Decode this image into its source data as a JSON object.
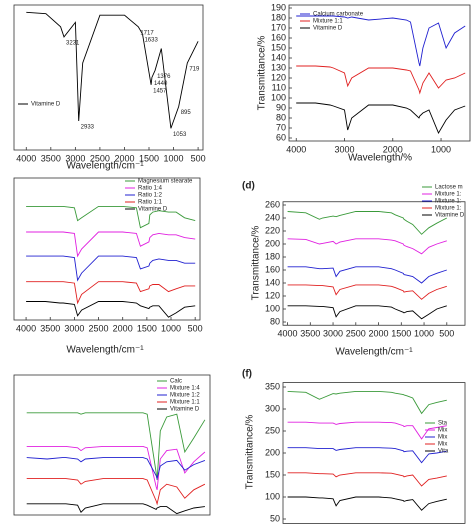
{
  "chart_data": [
    {
      "type": "line",
      "x_label": "Wavelength/cm⁻¹",
      "x": [
        4000,
        3600,
        3300,
        3231,
        3000,
        2933,
        2850,
        2500,
        2000,
        1717,
        1633,
        1457,
        1440,
        1376,
        1250,
        1053,
        895,
        719,
        500
      ],
      "xlim": [
        4250,
        400
      ],
      "ylim": [
        0,
        100
      ],
      "xticks": [
        4000,
        3500,
        3000,
        2500,
        2000,
        1500,
        1000,
        500
      ],
      "legend": "lower left",
      "series": [
        {
          "name": "Vitamine D",
          "color": "#000000",
          "values": [
            95,
            94,
            85,
            78,
            88,
            20,
            60,
            93,
            93,
            85,
            80,
            45,
            50,
            55,
            70,
            15,
            30,
            60,
            75
          ]
        }
      ],
      "annotations": [
        {
          "text": "3231",
          "x": 3231
        },
        {
          "text": "2933",
          "x": 2933
        },
        {
          "text": "1717",
          "x": 1717
        },
        {
          "text": "1633",
          "x": 1633
        },
        {
          "text": "1457",
          "x": 1457
        },
        {
          "text": "1440",
          "x": 1440
        },
        {
          "text": "1376",
          "x": 1376
        },
        {
          "text": "1053",
          "x": 1053
        },
        {
          "text": "895",
          "x": 895
        },
        {
          "text": "719",
          "x": 719
        }
      ]
    },
    {
      "type": "line",
      "x_label": "Wavelength/%",
      "y_label": "Transmittance/%",
      "x": [
        4000,
        3600,
        3300,
        3231,
        3000,
        2933,
        2850,
        2500,
        2000,
        1717,
        1633,
        1457,
        1440,
        1376,
        1250,
        1053,
        895,
        719,
        500
      ],
      "xlim": [
        4150,
        400
      ],
      "ylim": [
        57,
        193
      ],
      "xticks": [
        4000,
        3000,
        2000,
        1000
      ],
      "yticks": [
        60,
        70,
        80,
        90,
        100,
        110,
        120,
        130,
        140,
        150,
        160,
        170,
        180,
        190
      ],
      "legend": "upper left",
      "series": [
        {
          "name": "Calcium carbonate",
          "color": "#2020d0",
          "values": [
            182,
            182,
            182,
            182,
            181,
            180,
            181,
            178,
            180,
            178,
            176,
            135,
            132,
            150,
            170,
            175,
            150,
            165,
            172
          ]
        },
        {
          "name": "Mixture 1:1",
          "color": "#e02020",
          "values": [
            132,
            132,
            131,
            130,
            125,
            112,
            120,
            130,
            130,
            128,
            127,
            108,
            105,
            115,
            125,
            110,
            118,
            120,
            125
          ]
        },
        {
          "name": "Vitamine D",
          "color": "#000000",
          "values": [
            95,
            95,
            93,
            92,
            88,
            68,
            80,
            93,
            93,
            90,
            88,
            80,
            82,
            85,
            88,
            65,
            78,
            88,
            92
          ]
        }
      ]
    },
    {
      "type": "line",
      "x_label": "Wavelength/cm⁻¹",
      "x": [
        4000,
        3600,
        3300,
        3231,
        3000,
        2933,
        2850,
        2500,
        2000,
        1717,
        1633,
        1457,
        1440,
        1376,
        1250,
        1053,
        895,
        719,
        500
      ],
      "xlim": [
        4250,
        400
      ],
      "ylim": [
        0,
        100
      ],
      "xticks": [
        4000,
        3500,
        3000,
        2500,
        2000,
        1500,
        1000,
        500
      ],
      "legend": "upper right",
      "series": [
        {
          "name": "Magnesium stearate",
          "color": "#3a9a3a",
          "values": [
            80,
            80,
            80,
            80,
            79,
            70,
            72,
            80,
            80,
            79,
            65,
            68,
            74,
            76,
            77,
            76,
            76,
            72,
            70
          ]
        },
        {
          "name": "Ratio 1:4",
          "color": "#e020e0",
          "values": [
            62,
            62,
            62,
            62,
            61,
            45,
            50,
            62,
            62,
            61,
            52,
            55,
            58,
            60,
            61,
            60,
            60,
            58,
            57
          ]
        },
        {
          "name": "Ratio 1:2",
          "color": "#2020d0",
          "values": [
            45,
            45,
            45,
            45,
            44,
            28,
            33,
            45,
            45,
            44,
            36,
            38,
            40,
            42,
            43,
            42,
            42,
            40,
            40
          ]
        },
        {
          "name": "Ratio 1:1",
          "color": "#e02020",
          "values": [
            27,
            27,
            27,
            27,
            26,
            12,
            18,
            27,
            27,
            26,
            20,
            22,
            24,
            25,
            25,
            20,
            22,
            24,
            24
          ]
        },
        {
          "name": "Vitamine D",
          "color": "#000000",
          "values": [
            13,
            13,
            12,
            12,
            11,
            3,
            7,
            13,
            13,
            12,
            10,
            8,
            9,
            10,
            10,
            2,
            5,
            9,
            10
          ]
        }
      ]
    },
    {
      "type": "line",
      "title": "(d)",
      "x_label": "Wavelength/cm⁻¹",
      "y_label": "Transmittance/%",
      "x": [
        4000,
        3600,
        3300,
        3231,
        3000,
        2933,
        2850,
        2500,
        2000,
        1717,
        1633,
        1457,
        1440,
        1376,
        1250,
        1053,
        895,
        719,
        500
      ],
      "xlim": [
        4100,
        100
      ],
      "ylim": [
        75,
        265
      ],
      "xticks": [
        4000,
        3500,
        3000,
        2500,
        2000,
        1500,
        1000,
        500
      ],
      "yticks": [
        80,
        100,
        120,
        140,
        160,
        180,
        200,
        220,
        240,
        260
      ],
      "legend": "upper right",
      "series": [
        {
          "name": "Lactose m",
          "color": "#3a9a3a",
          "values": [
            250,
            248,
            238,
            240,
            243,
            242,
            244,
            250,
            250,
            248,
            245,
            240,
            238,
            235,
            230,
            215,
            225,
            232,
            240
          ]
        },
        {
          "name": "Mixture 1:",
          "color": "#e020e0",
          "values": [
            208,
            207,
            200,
            201,
            204,
            200,
            203,
            208,
            208,
            206,
            205,
            200,
            198,
            196,
            193,
            185,
            195,
            200,
            205
          ]
        },
        {
          "name": "Mixture 1:",
          "color": "#2020d0",
          "values": [
            165,
            165,
            162,
            162,
            163,
            150,
            158,
            165,
            165,
            162,
            160,
            155,
            153,
            152,
            150,
            140,
            150,
            155,
            160
          ]
        },
        {
          "name": "Mixture 1:",
          "color": "#e02020",
          "values": [
            137,
            137,
            136,
            136,
            134,
            122,
            130,
            137,
            137,
            135,
            133,
            128,
            126,
            127,
            128,
            115,
            124,
            130,
            135
          ]
        },
        {
          "name": "Vitamine D",
          "color": "#000000",
          "values": [
            105,
            105,
            104,
            104,
            102,
            88,
            96,
            105,
            105,
            103,
            100,
            95,
            94,
            96,
            97,
            85,
            92,
            100,
            105
          ]
        }
      ]
    },
    {
      "type": "line",
      "x": [
        4000,
        3600,
        3300,
        3231,
        3000,
        2933,
        2850,
        2500,
        2000,
        1717,
        1633,
        1457,
        1440,
        1376,
        1250,
        1053,
        895,
        719,
        500
      ],
      "xlim": [
        4250,
        400
      ],
      "ylim": [
        0,
        100
      ],
      "legend": "upper right",
      "series": [
        {
          "name": "Calc",
          "color": "#3a9a3a",
          "values": [
            73,
            73,
            73,
            73,
            73,
            72,
            73,
            73,
            73,
            73,
            72,
            30,
            25,
            60,
            70,
            72,
            45,
            55,
            68
          ]
        },
        {
          "name": "Mixture 1:4",
          "color": "#e020e0",
          "values": [
            49,
            49,
            49,
            49,
            48,
            46,
            48,
            49,
            49,
            49,
            48,
            20,
            18,
            40,
            46,
            47,
            30,
            38,
            45
          ]
        },
        {
          "name": "Mixture 1:2",
          "color": "#2020d0",
          "values": [
            41,
            40,
            41,
            41,
            40,
            38,
            40,
            41,
            41,
            41,
            40,
            28,
            26,
            35,
            38,
            39,
            32,
            36,
            39
          ]
        },
        {
          "name": "Mixture 1:1",
          "color": "#e02020",
          "values": [
            26,
            26,
            26,
            26,
            25,
            22,
            24,
            26,
            26,
            26,
            25,
            10,
            8,
            18,
            22,
            20,
            12,
            18,
            22
          ]
        },
        {
          "name": "Vitamine D",
          "color": "#000000",
          "values": [
            8,
            8,
            8,
            8,
            7,
            2,
            5,
            8,
            8,
            8,
            7,
            4,
            5,
            6,
            6,
            1,
            3,
            5,
            6
          ]
        }
      ]
    },
    {
      "type": "line",
      "title": "(f)",
      "y_label": "Transmittance/%",
      "x": [
        4000,
        3600,
        3300,
        3231,
        3000,
        2933,
        2850,
        2500,
        2000,
        1717,
        1633,
        1457,
        1440,
        1376,
        1250,
        1053,
        895,
        719,
        500
      ],
      "xlim": [
        4100,
        100
      ],
      "ylim": [
        40,
        360
      ],
      "yticks": [
        50,
        100,
        150,
        200,
        250,
        300,
        350
      ],
      "legend": "right",
      "series": [
        {
          "name": "Sta",
          "color": "#3a9a3a",
          "values": [
            340,
            338,
            322,
            325,
            335,
            334,
            336,
            340,
            340,
            338,
            336,
            333,
            332,
            330,
            325,
            290,
            310,
            315,
            320
          ]
        },
        {
          "name": "Mix",
          "color": "#e020e0",
          "values": [
            270,
            270,
            268,
            268,
            268,
            265,
            267,
            270,
            270,
            269,
            268,
            262,
            260,
            262,
            262,
            232,
            255,
            258,
            262
          ]
        },
        {
          "name": "Mix",
          "color": "#2020d0",
          "values": [
            212,
            212,
            210,
            210,
            210,
            206,
            208,
            212,
            212,
            211,
            210,
            205,
            203,
            204,
            205,
            178,
            198,
            200,
            204
          ]
        },
        {
          "name": "Mix",
          "color": "#e02020",
          "values": [
            155,
            155,
            153,
            153,
            152,
            146,
            150,
            155,
            155,
            154,
            152,
            148,
            146,
            148,
            150,
            125,
            140,
            143,
            148
          ]
        },
        {
          "name": "Vita",
          "color": "#000000",
          "values": [
            100,
            100,
            98,
            98,
            96,
            80,
            92,
            100,
            100,
            98,
            96,
            92,
            90,
            92,
            94,
            70,
            85,
            90,
            95
          ]
        }
      ]
    }
  ]
}
